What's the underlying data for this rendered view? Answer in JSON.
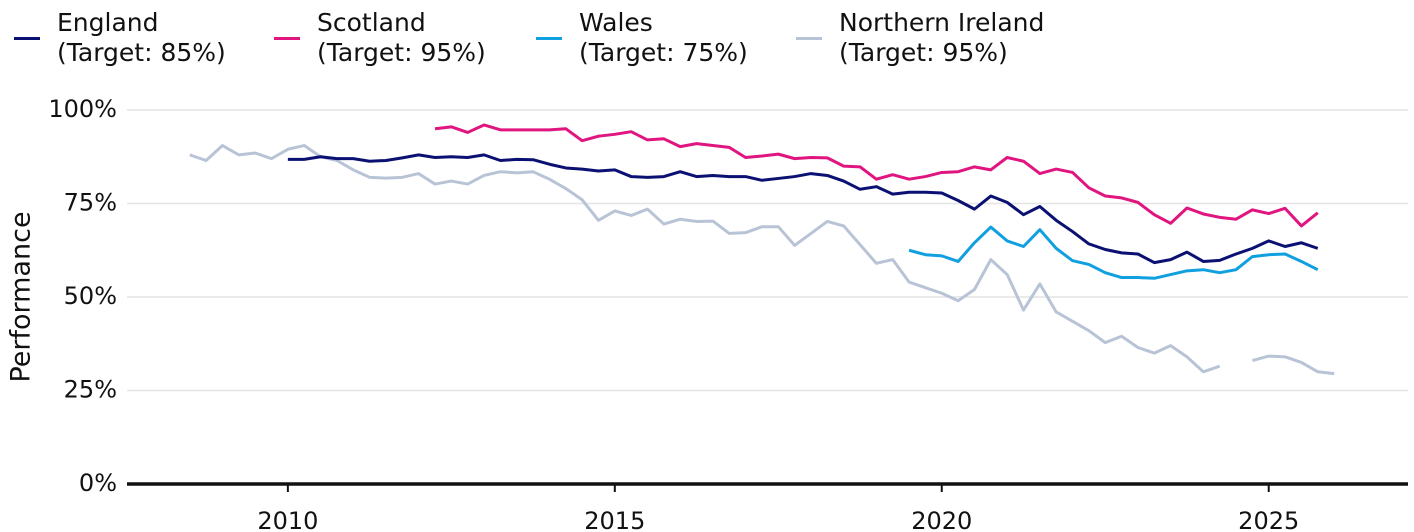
{
  "chart_data": {
    "type": "line",
    "y_label": "Performance",
    "x": [
      2008.5,
      2008.75,
      2009,
      2009.25,
      2009.5,
      2009.75,
      2010,
      2010.25,
      2010.5,
      2010.75,
      2011,
      2011.25,
      2011.5,
      2011.75,
      2012,
      2012.25,
      2012.5,
      2012.75,
      2013,
      2013.25,
      2013.5,
      2013.75,
      2014,
      2014.25,
      2014.5,
      2014.75,
      2015,
      2015.25,
      2015.5,
      2015.75,
      2016,
      2016.25,
      2016.5,
      2016.75,
      2017,
      2017.25,
      2017.5,
      2017.75,
      2018,
      2018.25,
      2018.5,
      2018.75,
      2019,
      2019.25,
      2019.5,
      2019.75,
      2020,
      2020.25,
      2020.5,
      2020.75,
      2021,
      2021.25,
      2021.5,
      2021.75,
      2022,
      2022.25,
      2022.5,
      2022.75,
      2023,
      2023.25,
      2023.5,
      2023.75,
      2024,
      2024.25,
      2024.5,
      2024.75,
      2025,
      2025.25,
      2025.5,
      2025.75,
      2026
    ],
    "series": [
      {
        "name": "England\n(Target: 85%)",
        "color": "#0a1172",
        "values": [
          null,
          null,
          null,
          null,
          null,
          null,
          86.8,
          86.8,
          87.5,
          87,
          87,
          86.3,
          86.5,
          87.2,
          88,
          87.3,
          87.5,
          87.3,
          88,
          86.5,
          86.8,
          86.7,
          85.5,
          84.5,
          84.2,
          83.7,
          84,
          82.2,
          82,
          82.2,
          83.5,
          82.2,
          82.5,
          82.2,
          82.2,
          81.2,
          81.7,
          82.2,
          83,
          82.5,
          81,
          78.8,
          79.5,
          77.5,
          78,
          78,
          77.8,
          75.8,
          73.5,
          77,
          75.3,
          72,
          74.2,
          70.5,
          67.5,
          64.2,
          62.7,
          61.8,
          61.5,
          59.2,
          60,
          62,
          59.5,
          59.8,
          61.5,
          63,
          65,
          63.5,
          64.5,
          63,
          null
        ]
      },
      {
        "name": "Scotland\n(Target: 95%)",
        "color": "#e0157f",
        "values": [
          null,
          null,
          null,
          null,
          null,
          null,
          null,
          null,
          null,
          null,
          null,
          null,
          null,
          null,
          null,
          95,
          95.5,
          94,
          96,
          94.7,
          94.7,
          94.7,
          94.7,
          95,
          91.8,
          93,
          93.5,
          94.2,
          92,
          92.3,
          90.2,
          91,
          90.5,
          90,
          87.3,
          87.7,
          88.2,
          87,
          87.3,
          87.2,
          85,
          84.8,
          81.5,
          82.7,
          81.5,
          82.2,
          83.3,
          83.5,
          84.8,
          84,
          87.3,
          86.3,
          83,
          84.2,
          83.3,
          79.2,
          77,
          76.5,
          75.3,
          72,
          69.7,
          73.8,
          72.2,
          71.3,
          70.8,
          73.3,
          72.3,
          73.7,
          69,
          72.5,
          null
        ]
      },
      {
        "name": "Wales\n(Target: 75%)",
        "color": "#10a0e0",
        "values": [
          null,
          null,
          null,
          null,
          null,
          null,
          null,
          null,
          null,
          null,
          null,
          null,
          null,
          null,
          null,
          null,
          null,
          null,
          null,
          null,
          null,
          null,
          null,
          null,
          null,
          null,
          null,
          null,
          null,
          null,
          null,
          null,
          null,
          null,
          null,
          null,
          null,
          null,
          null,
          null,
          null,
          null,
          null,
          null,
          62.5,
          61.3,
          61,
          59.5,
          64.5,
          68.7,
          65,
          63.5,
          68,
          63,
          59.7,
          58.7,
          56.5,
          55.2,
          55.2,
          55,
          56,
          57,
          57.3,
          56.5,
          57.3,
          60.8,
          61.3,
          61.5,
          59.5,
          57.3,
          null
        ]
      },
      {
        "name": "Northern Ireland\n(Target: 95%)",
        "color": "#b8c4d6",
        "values": [
          88,
          86.5,
          90.5,
          88,
          88.5,
          87,
          89.5,
          90.5,
          87.5,
          86.5,
          84,
          82,
          81.8,
          82,
          83,
          80.2,
          81,
          80.2,
          82.5,
          83.5,
          83.2,
          83.5,
          81.5,
          79,
          76,
          70.5,
          73,
          71.8,
          73.5,
          69.5,
          70.8,
          70.2,
          70.3,
          67,
          67.2,
          68.8,
          68.8,
          63.8,
          67,
          70.2,
          69,
          64,
          59,
          60,
          54,
          52.5,
          51,
          49,
          52,
          60,
          56,
          46.5,
          53.5,
          46,
          43.5,
          41,
          37.8,
          39.5,
          36.5,
          35,
          37,
          34,
          30,
          31.5,
          null,
          33,
          34.2,
          34,
          32.5,
          30,
          29.5
        ]
      }
    ],
    "xlim": [
      2007.54,
      2027.13
    ],
    "xticks": [
      2010,
      2015,
      2020,
      2025
    ],
    "ylim": [
      0,
      100
    ],
    "yticks": [
      {
        "value": 0,
        "label": "0%"
      },
      {
        "value": 25,
        "label": "25%"
      },
      {
        "value": 50,
        "label": "50%"
      },
      {
        "value": 75,
        "label": "75%"
      },
      {
        "value": 100,
        "label": "100%"
      }
    ],
    "grid": true,
    "legend": "top"
  }
}
